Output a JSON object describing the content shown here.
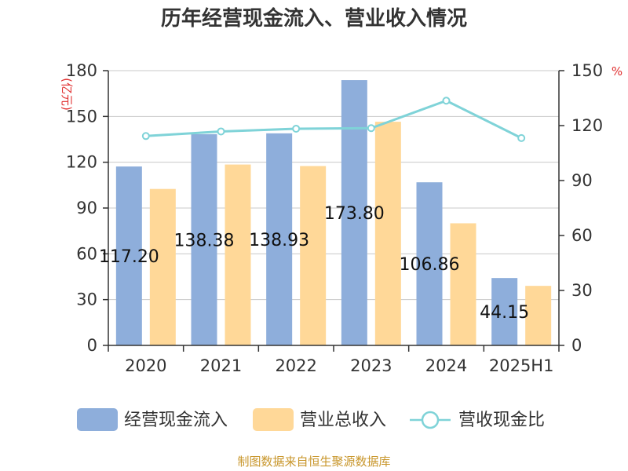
{
  "chart_data": {
    "type": "bar",
    "title": "历年经营现金流入、营业收入情况",
    "categories": [
      "2020",
      "2021",
      "2022",
      "2023",
      "2024",
      "2025H1"
    ],
    "series": [
      {
        "name": "经营现金流入",
        "axis": "left",
        "type": "bar",
        "color": "#8eaedb",
        "values": [
          117.2,
          138.38,
          138.93,
          173.8,
          106.86,
          44.15
        ],
        "labels": [
          "117.20",
          "138.38",
          "138.93",
          "173.80",
          "106.86",
          "44.15"
        ]
      },
      {
        "name": "营业总收入",
        "axis": "left",
        "type": "bar",
        "color": "#ffd898",
        "values": [
          102.5,
          118.5,
          117.5,
          146.5,
          80.0,
          39.0
        ]
      },
      {
        "name": "营收现金比",
        "axis": "right",
        "type": "line",
        "color": "#7fd3d8",
        "values": [
          114.3,
          116.8,
          118.3,
          118.6,
          133.6,
          113.2
        ]
      }
    ],
    "y_left": {
      "unit": "(亿元)",
      "ylim": [
        0,
        180
      ],
      "ticks": [
        "0",
        "30",
        "60",
        "90",
        "120",
        "150",
        "180"
      ]
    },
    "y_right": {
      "unit": "%",
      "ylim": [
        0,
        150
      ],
      "ticks": [
        "0",
        "30",
        "60",
        "90",
        "120",
        "150"
      ]
    },
    "grid": true,
    "legend_position": "bottom",
    "source": "制图数据来自恒生聚源数据库"
  }
}
